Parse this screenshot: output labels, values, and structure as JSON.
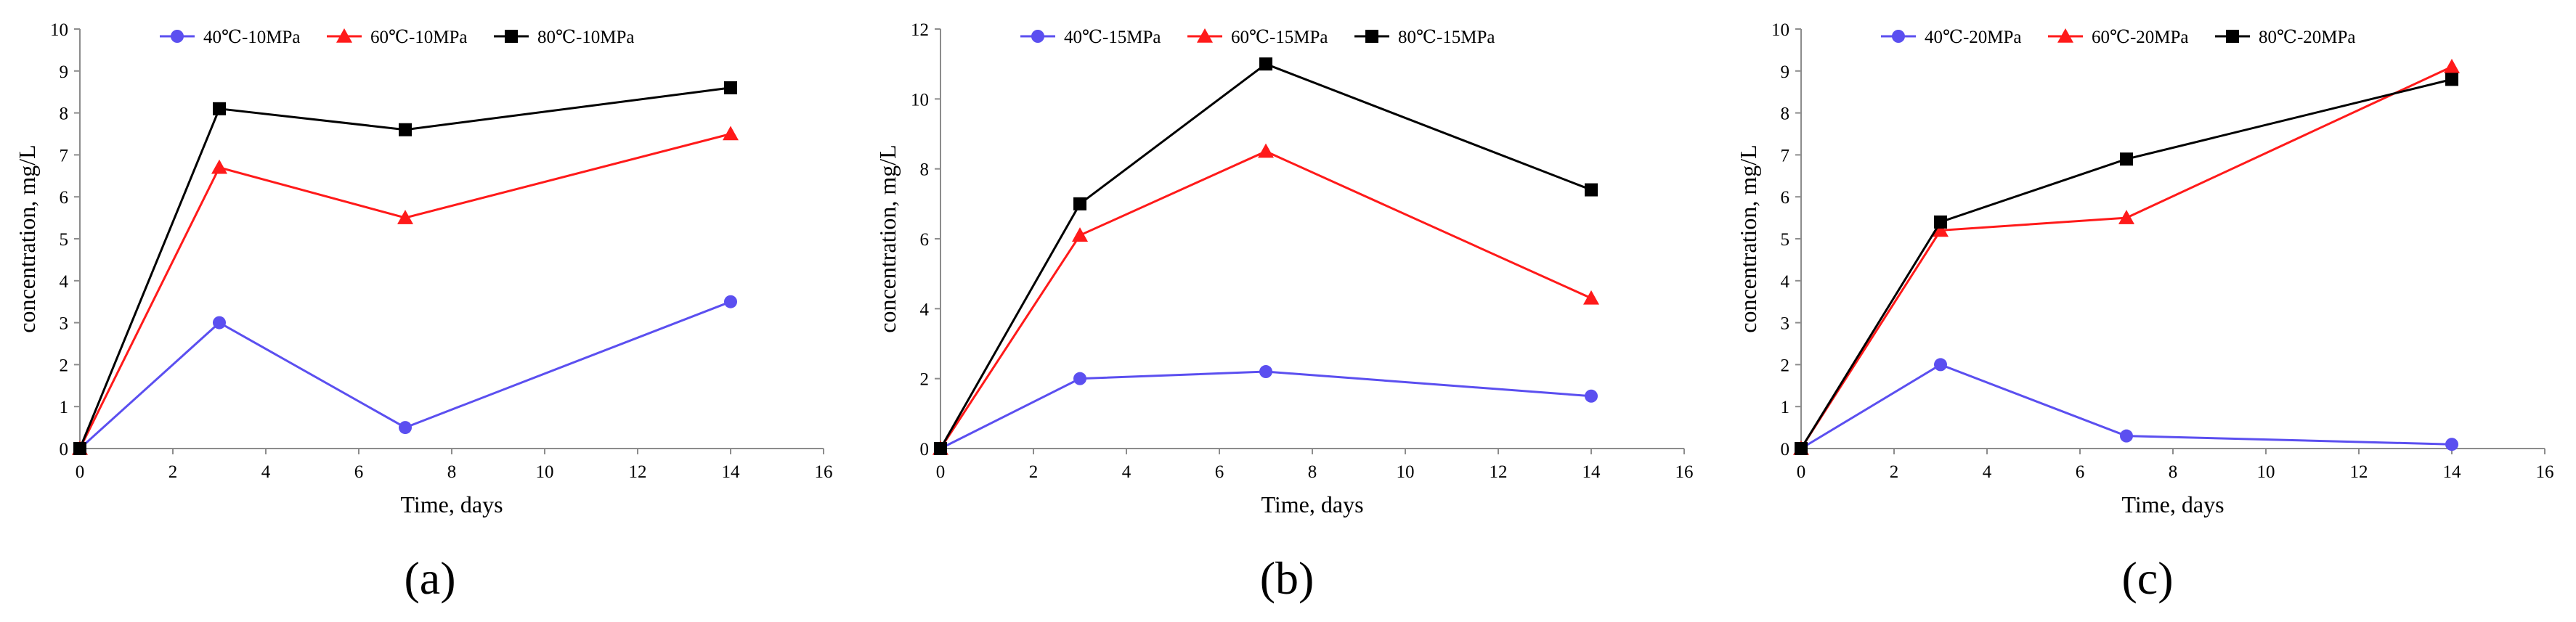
{
  "figure": {
    "panels": [
      "(a)",
      "(b)",
      "(c)"
    ]
  },
  "chart_data": [
    {
      "type": "line",
      "panel_label": "(a)",
      "xlabel": "Time, days",
      "ylabel": "concentration, mg/L",
      "xlim": [
        0,
        16
      ],
      "ylim": [
        0,
        10
      ],
      "xticks": [
        0,
        2,
        4,
        6,
        8,
        10,
        12,
        14,
        16
      ],
      "yticks": [
        0,
        1,
        2,
        3,
        4,
        5,
        6,
        7,
        8,
        9,
        10
      ],
      "x": [
        0,
        3,
        7,
        14
      ],
      "legend_position": "top",
      "grid": false,
      "series": [
        {
          "name": "40℃-10MPa",
          "color": "#5b4ff0",
          "marker": "circle",
          "values": [
            0,
            3.0,
            0.5,
            3.5
          ]
        },
        {
          "name": "60℃-10MPa",
          "color": "#ff1a1a",
          "marker": "triangle",
          "values": [
            0,
            6.7,
            5.5,
            7.5
          ]
        },
        {
          "name": "80℃-10MPa",
          "color": "#000000",
          "marker": "square",
          "values": [
            0,
            8.1,
            7.6,
            8.6
          ]
        }
      ]
    },
    {
      "type": "line",
      "panel_label": "(b)",
      "xlabel": "Time, days",
      "ylabel": "concentration, mg/L",
      "xlim": [
        0,
        16
      ],
      "ylim": [
        0,
        12
      ],
      "xticks": [
        0,
        2,
        4,
        6,
        8,
        10,
        12,
        14,
        16
      ],
      "yticks": [
        0,
        2,
        4,
        6,
        8,
        10,
        12
      ],
      "x": [
        0,
        3,
        7,
        14
      ],
      "legend_position": "top",
      "grid": false,
      "series": [
        {
          "name": "40℃-15MPa",
          "color": "#5b4ff0",
          "marker": "circle",
          "values": [
            0,
            2.0,
            2.2,
            1.5
          ]
        },
        {
          "name": "60℃-15MPa",
          "color": "#ff1a1a",
          "marker": "triangle",
          "values": [
            0,
            6.1,
            8.5,
            4.3
          ]
        },
        {
          "name": "80℃-15MPa",
          "color": "#000000",
          "marker": "square",
          "values": [
            0,
            7.0,
            11.0,
            7.4
          ]
        }
      ]
    },
    {
      "type": "line",
      "panel_label": "(c)",
      "xlabel": "Time, days",
      "ylabel": "concentration, mg/L",
      "xlim": [
        0,
        16
      ],
      "ylim": [
        0,
        10
      ],
      "xticks": [
        0,
        2,
        4,
        6,
        8,
        10,
        12,
        14,
        16
      ],
      "yticks": [
        0,
        1,
        2,
        3,
        4,
        5,
        6,
        7,
        8,
        9,
        10
      ],
      "x": [
        0,
        3,
        7,
        14
      ],
      "legend_position": "top",
      "grid": false,
      "series": [
        {
          "name": "40℃-20MPa",
          "color": "#5b4ff0",
          "marker": "circle",
          "values": [
            0,
            2.0,
            0.3,
            0.1
          ]
        },
        {
          "name": "60℃-20MPa",
          "color": "#ff1a1a",
          "marker": "triangle",
          "values": [
            0,
            5.2,
            5.5,
            9.1
          ]
        },
        {
          "name": "80℃-20MPa",
          "color": "#000000",
          "marker": "square",
          "values": [
            0,
            5.4,
            6.9,
            8.8
          ]
        }
      ]
    }
  ]
}
